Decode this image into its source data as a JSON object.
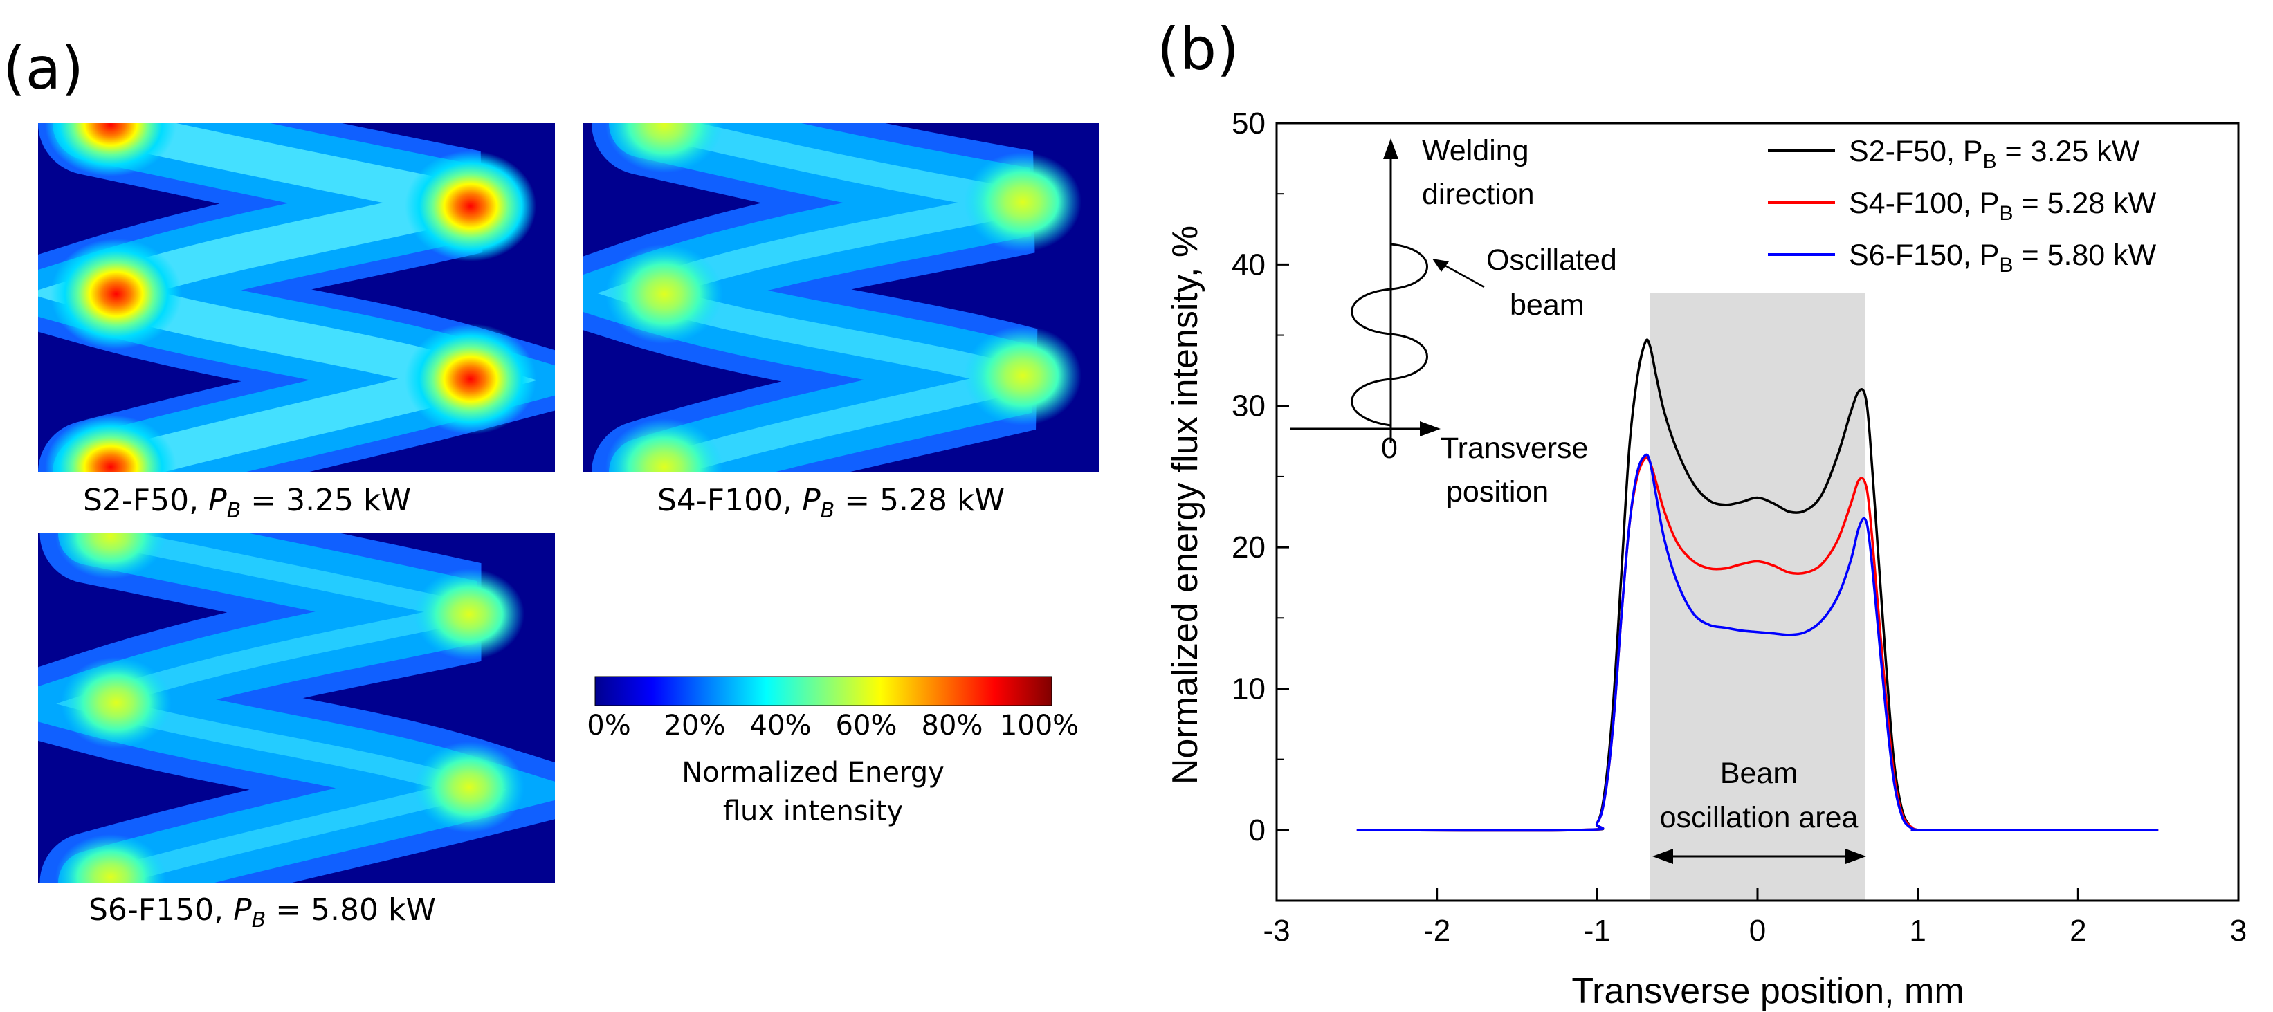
{
  "panel_a": {
    "label": "(a)",
    "maps": [
      {
        "name": "S2-F50",
        "sep": ", ",
        "pb_symbol": "P",
        "pb_sub": "B",
        "pb_value": " = 3.25 kW"
      },
      {
        "name": "S4-F100",
        "sep": ", ",
        "pb_symbol": "P",
        "pb_sub": "B",
        "pb_value": " = 5.28 kW"
      },
      {
        "name": "S6-F150",
        "sep": ", ",
        "pb_symbol": "P",
        "pb_sub": "B",
        "pb_value": " = 5.80 kW"
      }
    ],
    "colorbar": {
      "ticks": [
        "0%",
        "20%",
        "40%",
        "60%",
        "80%",
        "100%"
      ],
      "title_line1": "Normalized Energy",
      "title_line2": "flux intensity",
      "colors": [
        "#00008f",
        "#0000ff",
        "#0080ff",
        "#00ffff",
        "#80ff80",
        "#ffff00",
        "#ff8000",
        "#ff0000",
        "#800000"
      ]
    }
  },
  "panel_b": {
    "label": "(b)",
    "inset": {
      "welding_line1": "Welding",
      "welding_line2": "direction",
      "oscillated_line1": "Oscillated",
      "oscillated_line2": "beam",
      "zero": "0",
      "transverse_line1": "Transverse",
      "transverse_line2": "position"
    },
    "shaded_label_line1": "Beam",
    "shaded_label_line2": "oscillation area"
  },
  "chart_data": {
    "type": "line",
    "title": "",
    "xlabel": "Transverse position, mm",
    "ylabel": "Normalized energy flux intensity, %",
    "xlim": [
      -3,
      3
    ],
    "ylim": [
      -5,
      50
    ],
    "xticks": [
      -3,
      -2,
      -1,
      0,
      1,
      2,
      3
    ],
    "yticks": [
      0,
      10,
      20,
      30,
      40,
      50
    ],
    "shaded_region": {
      "x": [
        -0.67,
        0.67
      ],
      "y": [
        -5,
        38
      ]
    },
    "legend_position": "top-right",
    "series": [
      {
        "name": "S2-F50, ",
        "pb_symbol": "P",
        "pb_sub": "B",
        "pb_value": " = 3.25 kW",
        "color": "#000000",
        "x": [
          -2.5,
          -1.1,
          -1.0,
          -0.95,
          -0.9,
          -0.85,
          -0.8,
          -0.75,
          -0.7,
          -0.67,
          -0.63,
          -0.58,
          -0.5,
          -0.4,
          -0.3,
          -0.2,
          -0.1,
          0,
          0.1,
          0.2,
          0.3,
          0.4,
          0.5,
          0.58,
          0.63,
          0.67,
          0.7,
          0.75,
          0.8,
          0.85,
          0.9,
          0.95,
          1.0,
          1.1,
          2.5
        ],
        "y": [
          0,
          0,
          0.5,
          3,
          9,
          18,
          27,
          32,
          34.5,
          34.2,
          32,
          29.5,
          26.8,
          24.5,
          23.3,
          23,
          23.2,
          23.5,
          23.1,
          22.5,
          22.6,
          23.7,
          26.5,
          29.5,
          31,
          30.8,
          28,
          20,
          12,
          5,
          1.5,
          0.3,
          0,
          0,
          0
        ]
      },
      {
        "name": "S4-F100, ",
        "pb_symbol": "P",
        "pb_sub": "B",
        "pb_value": " = 5.28 kW",
        "color": "#ff0000",
        "x": [
          -2.5,
          -1.1,
          -1.0,
          -0.95,
          -0.9,
          -0.85,
          -0.8,
          -0.75,
          -0.7,
          -0.67,
          -0.63,
          -0.58,
          -0.5,
          -0.4,
          -0.3,
          -0.2,
          -0.1,
          0,
          0.1,
          0.2,
          0.3,
          0.4,
          0.5,
          0.58,
          0.63,
          0.67,
          0.7,
          0.75,
          0.8,
          0.85,
          0.9,
          0.95,
          1.0,
          1.1,
          2.5
        ],
        "y": [
          0,
          0,
          0.5,
          2.5,
          7.5,
          15,
          21.5,
          25,
          26.3,
          26,
          24.5,
          22.5,
          20.3,
          19,
          18.5,
          18.5,
          18.8,
          19,
          18.7,
          18.2,
          18.2,
          18.8,
          20.5,
          23,
          24.7,
          24.6,
          22.5,
          16,
          9.5,
          4,
          1.2,
          0.3,
          0,
          0,
          0
        ]
      },
      {
        "name": "S6-F150, ",
        "pb_symbol": "P",
        "pb_sub": "B",
        "pb_value": " = 5.80 kW",
        "color": "#0000ff",
        "x": [
          -2.5,
          -1.1,
          -1.0,
          -0.95,
          -0.9,
          -0.85,
          -0.8,
          -0.75,
          -0.7,
          -0.67,
          -0.63,
          -0.58,
          -0.5,
          -0.4,
          -0.3,
          -0.2,
          -0.1,
          0,
          0.1,
          0.2,
          0.3,
          0.4,
          0.5,
          0.58,
          0.63,
          0.67,
          0.7,
          0.75,
          0.8,
          0.85,
          0.9,
          0.95,
          1.0,
          1.1,
          2.5
        ],
        "y": [
          0,
          0,
          0.5,
          2.5,
          7.5,
          15,
          21.5,
          25.3,
          26.5,
          26,
          23.5,
          20.5,
          17.5,
          15.3,
          14.5,
          14.3,
          14.1,
          14,
          13.9,
          13.8,
          14,
          14.8,
          16.5,
          19,
          21.3,
          22,
          20.3,
          14.5,
          8.5,
          3.5,
          1,
          0.2,
          0,
          0,
          0
        ]
      }
    ]
  }
}
